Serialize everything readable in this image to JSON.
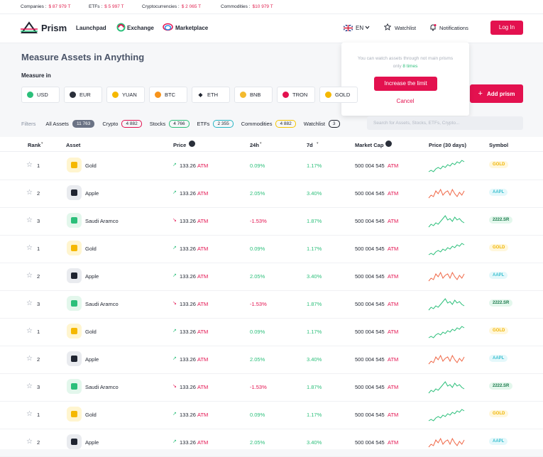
{
  "ticker": [
    {
      "label": "Companies :",
      "value": "$ 87 979 T"
    },
    {
      "label": "ETFs :",
      "value": "$ 5 997 T"
    },
    {
      "label": "Cryptocurrencies :",
      "value": "$ 2 065 T"
    },
    {
      "label": "Commodities :",
      "value": "$10 979 T"
    }
  ],
  "nav": {
    "logo": "Prism",
    "links": [
      "Launchpad",
      "Exchange",
      "Marketplace"
    ],
    "language": "EN",
    "watchlist": "Watchlist",
    "notifications": "Notifications",
    "login": "Log In"
  },
  "header": {
    "title": "Measure Assets in Anything",
    "measure_label": "Measure in",
    "add_button": "Add prism"
  },
  "currencies": [
    "USD",
    "EUR",
    "YUAN",
    "BTC",
    "ETH",
    "BNB",
    "TRON",
    "GOLD"
  ],
  "popover": {
    "message": "You can watch assets through not main prisms only",
    "highlight": "8 times",
    "primary": "Increase the limit",
    "secondary": "Cancel"
  },
  "filters": {
    "label": "Filters",
    "items": [
      {
        "name": "All Assets",
        "count": "11 763"
      },
      {
        "name": "Crypto",
        "count": "4 882"
      },
      {
        "name": "Stocks",
        "count": "4 766"
      },
      {
        "name": "ETFs",
        "count": "2 355"
      },
      {
        "name": "Commodities",
        "count": "4 882"
      },
      {
        "name": "Watchlist",
        "count": "3"
      }
    ],
    "search_placeholder": "Search for Assets, Stocks, ETFs, Crypto..."
  },
  "table": {
    "columns": [
      "Rank",
      "Asset",
      "Price",
      "24h",
      "7d",
      "Market Cap",
      "Price (30 days)",
      "Symbol"
    ],
    "rows": [
      {
        "rank": 1,
        "asset": "Gold",
        "price": "133.26",
        "price_unit": "ATM",
        "change_24h": "0.09%",
        "change_7d": "1.17%",
        "market_cap": "500 004 545",
        "market_cap_unit": "ATM",
        "symbol": "GOLD"
      },
      {
        "rank": 2,
        "asset": "Apple",
        "price": "133.26",
        "price_unit": "ATM",
        "change_24h": "2.05%",
        "change_7d": "3.40%",
        "market_cap": "500 004 545",
        "market_cap_unit": "ATM",
        "symbol": "AAPL"
      },
      {
        "rank": 3,
        "asset": "Saudi Aramco",
        "price": "133.26",
        "price_unit": "ATM",
        "change_24h": "-1.53%",
        "change_7d": "1.87%",
        "market_cap": "500 004 545",
        "market_cap_unit": "ATM",
        "symbol": "2222.SR"
      },
      {
        "rank": 1,
        "asset": "Gold",
        "price": "133.26",
        "price_unit": "ATM",
        "change_24h": "0.09%",
        "change_7d": "1.17%",
        "market_cap": "500 004 545",
        "market_cap_unit": "ATM",
        "symbol": "GOLD"
      },
      {
        "rank": 2,
        "asset": "Apple",
        "price": "133.26",
        "price_unit": "ATM",
        "change_24h": "2.05%",
        "change_7d": "3.40%",
        "market_cap": "500 004 545",
        "market_cap_unit": "ATM",
        "symbol": "AAPL"
      },
      {
        "rank": 3,
        "asset": "Saudi Aramco",
        "price": "133.26",
        "price_unit": "ATM",
        "change_24h": "-1.53%",
        "change_7d": "1.87%",
        "market_cap": "500 004 545",
        "market_cap_unit": "ATM",
        "symbol": "2222.SR"
      },
      {
        "rank": 1,
        "asset": "Gold",
        "price": "133.26",
        "price_unit": "ATM",
        "change_24h": "0.09%",
        "change_7d": "1.17%",
        "market_cap": "500 004 545",
        "market_cap_unit": "ATM",
        "symbol": "GOLD"
      },
      {
        "rank": 2,
        "asset": "Apple",
        "price": "133.26",
        "price_unit": "ATM",
        "change_24h": "2.05%",
        "change_7d": "3.40%",
        "market_cap": "500 004 545",
        "market_cap_unit": "ATM",
        "symbol": "AAPL"
      },
      {
        "rank": 3,
        "asset": "Saudi Aramco",
        "price": "133.26",
        "price_unit": "ATM",
        "change_24h": "-1.53%",
        "change_7d": "1.87%",
        "market_cap": "500 004 545",
        "market_cap_unit": "ATM",
        "symbol": "2222.SR"
      },
      {
        "rank": 1,
        "asset": "Gold",
        "price": "133.26",
        "price_unit": "ATM",
        "change_24h": "0.09%",
        "change_7d": "1.17%",
        "market_cap": "500 004 545",
        "market_cap_unit": "ATM",
        "symbol": "GOLD"
      },
      {
        "rank": 2,
        "asset": "Apple",
        "price": "133.26",
        "price_unit": "ATM",
        "change_24h": "2.05%",
        "change_7d": "3.40%",
        "market_cap": "500 004 545",
        "market_cap_unit": "ATM",
        "symbol": "AAPL"
      }
    ]
  }
}
